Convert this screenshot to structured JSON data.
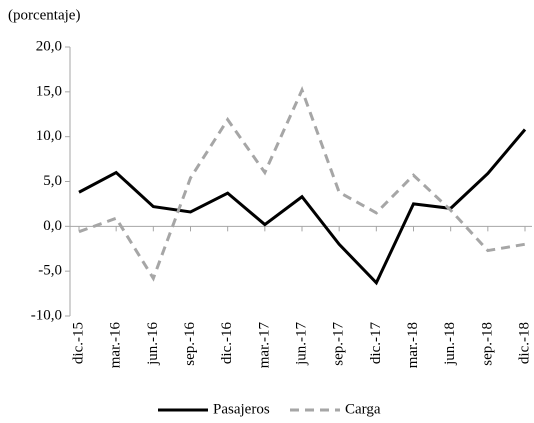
{
  "chart_data": {
    "type": "line",
    "y_label": "(porcentaje)",
    "categories": [
      "dic.-15",
      "mar.-16",
      "jun.-16",
      "sep.-16",
      "dic.-16",
      "mar.-17",
      "jun.-17",
      "sep.-17",
      "dic.-17",
      "mar.-18",
      "jun.-18",
      "sep.-18",
      "dic.-18"
    ],
    "series": [
      {
        "name": "Pasajeros",
        "color": "#000000",
        "dash": "solid",
        "values": [
          3.8,
          6.0,
          2.2,
          1.6,
          3.7,
          0.2,
          3.3,
          -2.0,
          -6.3,
          2.5,
          2.0,
          5.9,
          10.8
        ]
      },
      {
        "name": "Carga",
        "color": "#a6a6a6",
        "dash": "dashed",
        "values": [
          -0.6,
          0.9,
          -5.8,
          5.4,
          11.9,
          6.0,
          15.2,
          3.8,
          1.5,
          5.7,
          1.8,
          -2.7,
          -2.0
        ]
      }
    ],
    "ylim": [
      -10,
      20
    ],
    "yticks": [
      {
        "value": -10,
        "label": "-10,0"
      },
      {
        "value": -5,
        "label": "-5,0"
      },
      {
        "value": 0,
        "label": "0,0"
      },
      {
        "value": 5,
        "label": "5,0"
      },
      {
        "value": 10,
        "label": "10,0"
      },
      {
        "value": 15,
        "label": "15,0"
      },
      {
        "value": 20,
        "label": "20,0"
      }
    ],
    "grid": false,
    "legend": "bottom"
  }
}
